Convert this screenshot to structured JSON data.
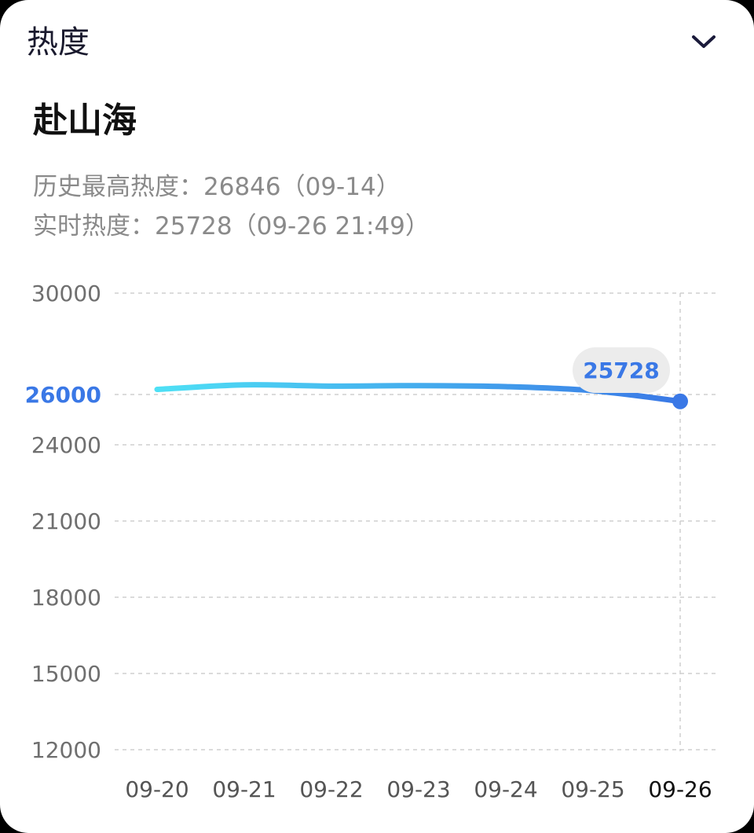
{
  "header": {
    "title": "热度"
  },
  "main": {
    "title": "赴山海",
    "history_max": "历史最高热度：26846（09-14）",
    "realtime": "实时热度：25728（09-26 21:49）"
  },
  "colors": {
    "line_start": "#4ee0f5",
    "line_end": "#3a78e6",
    "accent": "#3a78e6"
  },
  "chart_data": {
    "type": "line",
    "categories": [
      "09-20",
      "09-21",
      "09-22",
      "09-23",
      "09-24",
      "09-25",
      "09-26"
    ],
    "y_ticks": [
      30000,
      26000,
      24000,
      21000,
      18000,
      15000,
      12000
    ],
    "highlighted_y_tick": 26000,
    "series": [
      {
        "values": [
          26200,
          26380,
          26330,
          26350,
          26310,
          26150,
          25728
        ]
      }
    ],
    "tooltip": {
      "category": "09-26",
      "value": "25728"
    },
    "grid": true
  }
}
